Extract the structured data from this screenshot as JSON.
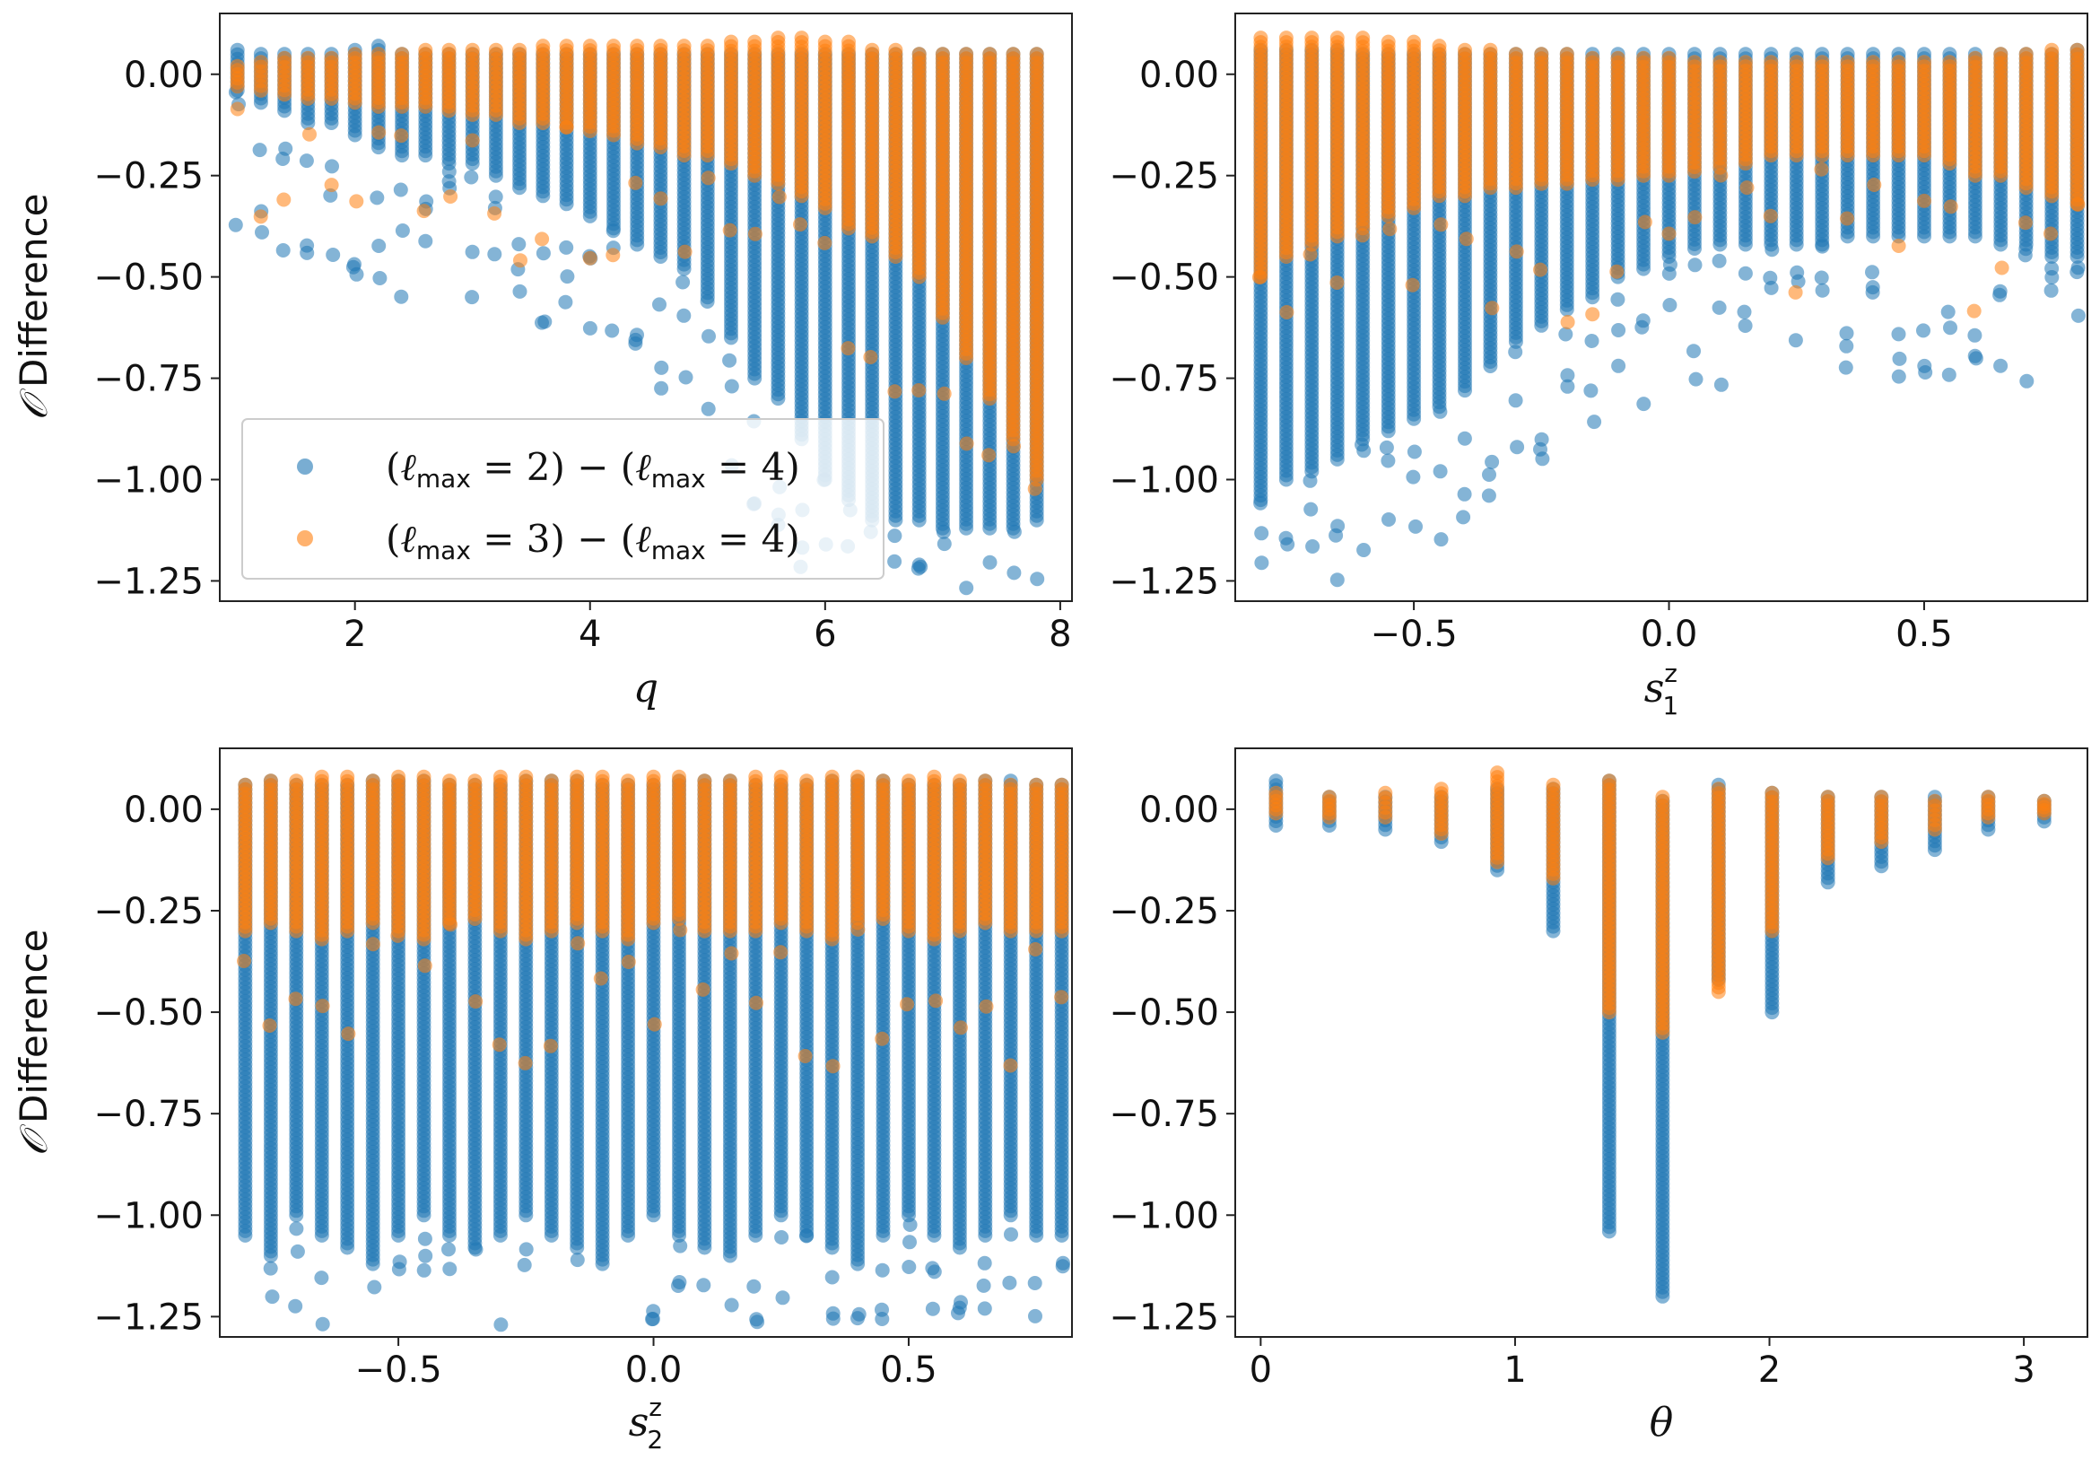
{
  "colors": {
    "series_a": "#1f77b4",
    "series_b": "#ff7f0e"
  },
  "chart_data": [
    {
      "type": "scatter",
      "panel": "top-left",
      "xlabel": "q",
      "ylabel_symbol": "𝒪",
      "ylabel_text": "Difference",
      "xlim": [
        0.85,
        8.1
      ],
      "ylim": [
        -1.3,
        0.15
      ],
      "xticks": [
        2,
        4,
        6,
        8
      ],
      "xtick_labels": [
        "2",
        "4",
        "6",
        "8"
      ],
      "yticks": [
        0.0,
        -0.25,
        -0.5,
        -0.75,
        -1.0,
        -1.25
      ],
      "ytick_labels": [
        "0.00",
        "−0.25",
        "−0.50",
        "−0.75",
        "−1.00",
        "−1.25"
      ],
      "legend": {
        "location": "lower-left",
        "entries": [
          {
            "name": "(ℓmax = 2) − (ℓmax = 4)",
            "color": "#1f77b4"
          },
          {
            "name": "(ℓmax = 3) − (ℓmax = 4)",
            "color": "#ff7f0e"
          }
        ]
      },
      "x_ranges": {
        "start": 1.0,
        "step": 0.2,
        "count": 35
      },
      "series_a_band": {
        "top": [
          0.06,
          0.05,
          0.05,
          0.05,
          0.05,
          0.06,
          0.07,
          0.05,
          0.05,
          0.05,
          0.05,
          0.05,
          0.05,
          0.05,
          0.05,
          0.05,
          0.05,
          0.05,
          0.05,
          0.05,
          0.05,
          0.05,
          0.05,
          0.05,
          0.05,
          0.05,
          0.05,
          0.05,
          0.05,
          0.05,
          0.05,
          0.05,
          0.05,
          0.05,
          0.05
        ],
        "bottom": [
          -0.04,
          -0.07,
          -0.09,
          -0.12,
          -0.12,
          -0.15,
          -0.18,
          -0.2,
          -0.2,
          -0.22,
          -0.22,
          -0.25,
          -0.28,
          -0.3,
          -0.32,
          -0.35,
          -0.38,
          -0.42,
          -0.45,
          -0.48,
          -0.55,
          -0.65,
          -0.75,
          -0.8,
          -0.9,
          -1.0,
          -1.05,
          -1.1,
          -1.1,
          -1.1,
          -1.12,
          -1.12,
          -1.12,
          -1.12,
          -1.1
        ]
      },
      "series_b_band": {
        "top": [
          0.02,
          0.03,
          0.04,
          0.04,
          0.04,
          0.05,
          0.05,
          0.05,
          0.06,
          0.06,
          0.06,
          0.06,
          0.06,
          0.07,
          0.07,
          0.07,
          0.07,
          0.07,
          0.07,
          0.07,
          0.07,
          0.08,
          0.08,
          0.09,
          0.09,
          0.08,
          0.08,
          0.06,
          0.06,
          0.05,
          0.05,
          0.05,
          0.05,
          0.05,
          0.05
        ],
        "bottom": [
          -0.03,
          -0.04,
          -0.05,
          -0.06,
          -0.06,
          -0.07,
          -0.08,
          -0.08,
          -0.08,
          -0.09,
          -0.1,
          -0.1,
          -0.12,
          -0.12,
          -0.13,
          -0.14,
          -0.15,
          -0.17,
          -0.18,
          -0.2,
          -0.2,
          -0.22,
          -0.25,
          -0.27,
          -0.3,
          -0.33,
          -0.38,
          -0.4,
          -0.45,
          -0.5,
          -0.6,
          -0.7,
          -0.8,
          -0.9,
          -1.0
        ]
      }
    },
    {
      "type": "scatter",
      "panel": "top-right",
      "xlabel": "s1z",
      "xlim": [
        -0.85,
        0.82
      ],
      "ylim": [
        -1.3,
        0.15
      ],
      "xticks": [
        -0.5,
        0.0,
        0.5
      ],
      "xtick_labels": [
        "−0.5",
        "0.0",
        "0.5"
      ],
      "yticks": [
        0.0,
        -0.25,
        -0.5,
        -0.75,
        -1.0,
        -1.25
      ],
      "ytick_labels": [
        "0.00",
        "−0.25",
        "−0.50",
        "−0.75",
        "−1.00",
        "−1.25"
      ],
      "x_ranges": {
        "start": -0.8,
        "step": 0.05,
        "count": 33
      },
      "series_a_band": {
        "top": [
          0.06,
          0.06,
          0.06,
          0.06,
          0.05,
          0.05,
          0.05,
          0.05,
          0.05,
          0.05,
          0.05,
          0.05,
          0.05,
          0.05,
          0.05,
          0.05,
          0.05,
          0.05,
          0.05,
          0.05,
          0.05,
          0.05,
          0.05,
          0.05,
          0.05,
          0.05,
          0.05,
          0.05,
          0.05,
          0.05,
          0.05,
          0.05,
          0.06
        ],
        "bottom": [
          -1.05,
          -1.0,
          -0.98,
          -0.95,
          -0.9,
          -0.88,
          -0.85,
          -0.82,
          -0.78,
          -0.72,
          -0.66,
          -0.62,
          -0.58,
          -0.55,
          -0.5,
          -0.48,
          -0.45,
          -0.43,
          -0.42,
          -0.42,
          -0.42,
          -0.42,
          -0.42,
          -0.4,
          -0.4,
          -0.4,
          -0.4,
          -0.4,
          -0.4,
          -0.42,
          -0.42,
          -0.45,
          -0.45
        ]
      },
      "series_b_band": {
        "top": [
          0.09,
          0.09,
          0.09,
          0.09,
          0.09,
          0.08,
          0.08,
          0.07,
          0.06,
          0.06,
          0.05,
          0.05,
          0.05,
          0.04,
          0.04,
          0.04,
          0.04,
          0.03,
          0.03,
          0.03,
          0.03,
          0.03,
          0.03,
          0.03,
          0.03,
          0.03,
          0.03,
          0.03,
          0.04,
          0.05,
          0.05,
          0.06,
          0.06
        ],
        "bottom": [
          -0.5,
          -0.45,
          -0.42,
          -0.4,
          -0.38,
          -0.35,
          -0.33,
          -0.3,
          -0.3,
          -0.28,
          -0.28,
          -0.27,
          -0.27,
          -0.26,
          -0.26,
          -0.25,
          -0.25,
          -0.24,
          -0.23,
          -0.22,
          -0.2,
          -0.2,
          -0.2,
          -0.2,
          -0.2,
          -0.2,
          -0.2,
          -0.22,
          -0.25,
          -0.25,
          -0.28,
          -0.3,
          -0.32
        ]
      }
    },
    {
      "type": "scatter",
      "panel": "bottom-left",
      "xlabel": "s2z",
      "ylabel_symbol": "𝒪",
      "ylabel_text": "Difference",
      "xlim": [
        -0.85,
        0.82
      ],
      "ylim": [
        -1.3,
        0.15
      ],
      "xticks": [
        -0.5,
        0.0,
        0.5
      ],
      "xtick_labels": [
        "−0.5",
        "0.0",
        "0.5"
      ],
      "yticks": [
        0.0,
        -0.25,
        -0.5,
        -0.75,
        -1.0,
        -1.25
      ],
      "ytick_labels": [
        "0.00",
        "−0.25",
        "−0.50",
        "−0.75",
        "−1.00",
        "−1.25"
      ],
      "x_ranges": {
        "start": -0.8,
        "step": 0.05,
        "count": 33
      },
      "series_a_band": {
        "top": [
          0.06,
          0.07,
          0.06,
          0.06,
          0.06,
          0.07,
          0.07,
          0.07,
          0.06,
          0.06,
          0.06,
          0.07,
          0.07,
          0.07,
          0.06,
          0.06,
          0.06,
          0.07,
          0.07,
          0.07,
          0.06,
          0.06,
          0.06,
          0.07,
          0.07,
          0.07,
          0.06,
          0.06,
          0.06,
          0.07,
          0.07,
          0.06,
          0.06
        ],
        "bottom": [
          -1.05,
          -1.1,
          -1.0,
          -1.05,
          -1.08,
          -1.12,
          -1.05,
          -1.0,
          -1.05,
          -1.08,
          -1.05,
          -1.0,
          -1.05,
          -1.08,
          -1.12,
          -1.05,
          -1.0,
          -1.05,
          -1.08,
          -1.1,
          -1.05,
          -1.0,
          -1.05,
          -1.08,
          -1.12,
          -1.05,
          -1.0,
          -1.05,
          -1.08,
          -1.05,
          -1.0,
          -1.05,
          -1.05
        ]
      },
      "series_b_band": {
        "top": [
          0.06,
          0.07,
          0.07,
          0.08,
          0.08,
          0.07,
          0.08,
          0.08,
          0.07,
          0.07,
          0.08,
          0.08,
          0.07,
          0.08,
          0.08,
          0.07,
          0.08,
          0.08,
          0.07,
          0.07,
          0.08,
          0.08,
          0.07,
          0.08,
          0.08,
          0.07,
          0.07,
          0.08,
          0.07,
          0.07,
          0.06,
          0.06,
          0.06
        ],
        "bottom": [
          -0.3,
          -0.28,
          -0.3,
          -0.32,
          -0.3,
          -0.28,
          -0.3,
          -0.32,
          -0.28,
          -0.27,
          -0.3,
          -0.32,
          -0.3,
          -0.28,
          -0.3,
          -0.32,
          -0.28,
          -0.27,
          -0.3,
          -0.3,
          -0.3,
          -0.28,
          -0.3,
          -0.32,
          -0.28,
          -0.27,
          -0.3,
          -0.32,
          -0.3,
          -0.28,
          -0.3,
          -0.3,
          -0.3
        ]
      }
    },
    {
      "type": "scatter",
      "panel": "bottom-right",
      "xlabel": "θ",
      "xlim": [
        -0.1,
        3.25
      ],
      "ylim": [
        -1.3,
        0.15
      ],
      "xticks": [
        0,
        1,
        2,
        3
      ],
      "xtick_labels": [
        "0",
        "1",
        "2",
        "3"
      ],
      "yticks": [
        0.0,
        -0.25,
        -0.5,
        -0.75,
        -1.0,
        -1.25
      ],
      "ytick_labels": [
        "0.00",
        "−0.25",
        "−0.50",
        "−0.75",
        "−1.00",
        "−1.25"
      ],
      "x_positions": [
        0.06,
        0.27,
        0.49,
        0.71,
        0.93,
        1.15,
        1.37,
        1.58,
        1.8,
        2.01,
        2.23,
        2.44,
        2.65,
        2.86,
        3.08
      ],
      "series_a_band": {
        "top": [
          0.07,
          0.03,
          0.03,
          0.03,
          0.05,
          0.05,
          0.07,
          0.02,
          0.06,
          0.04,
          0.03,
          0.03,
          0.03,
          0.03,
          0.02
        ],
        "bottom": [
          -0.04,
          -0.04,
          -0.05,
          -0.08,
          -0.15,
          -0.3,
          -1.04,
          -1.2,
          -0.42,
          -0.5,
          -0.18,
          -0.14,
          -0.1,
          -0.05,
          -0.03
        ]
      },
      "series_b_band": {
        "top": [
          0.04,
          0.03,
          0.04,
          0.05,
          0.09,
          0.06,
          0.07,
          0.03,
          0.05,
          0.04,
          0.03,
          0.03,
          0.02,
          0.03,
          0.02
        ],
        "bottom": [
          -0.01,
          -0.02,
          -0.02,
          -0.06,
          -0.13,
          -0.17,
          -0.5,
          -0.55,
          -0.45,
          -0.3,
          -0.12,
          -0.08,
          -0.05,
          -0.02,
          -0.01
        ]
      }
    }
  ]
}
